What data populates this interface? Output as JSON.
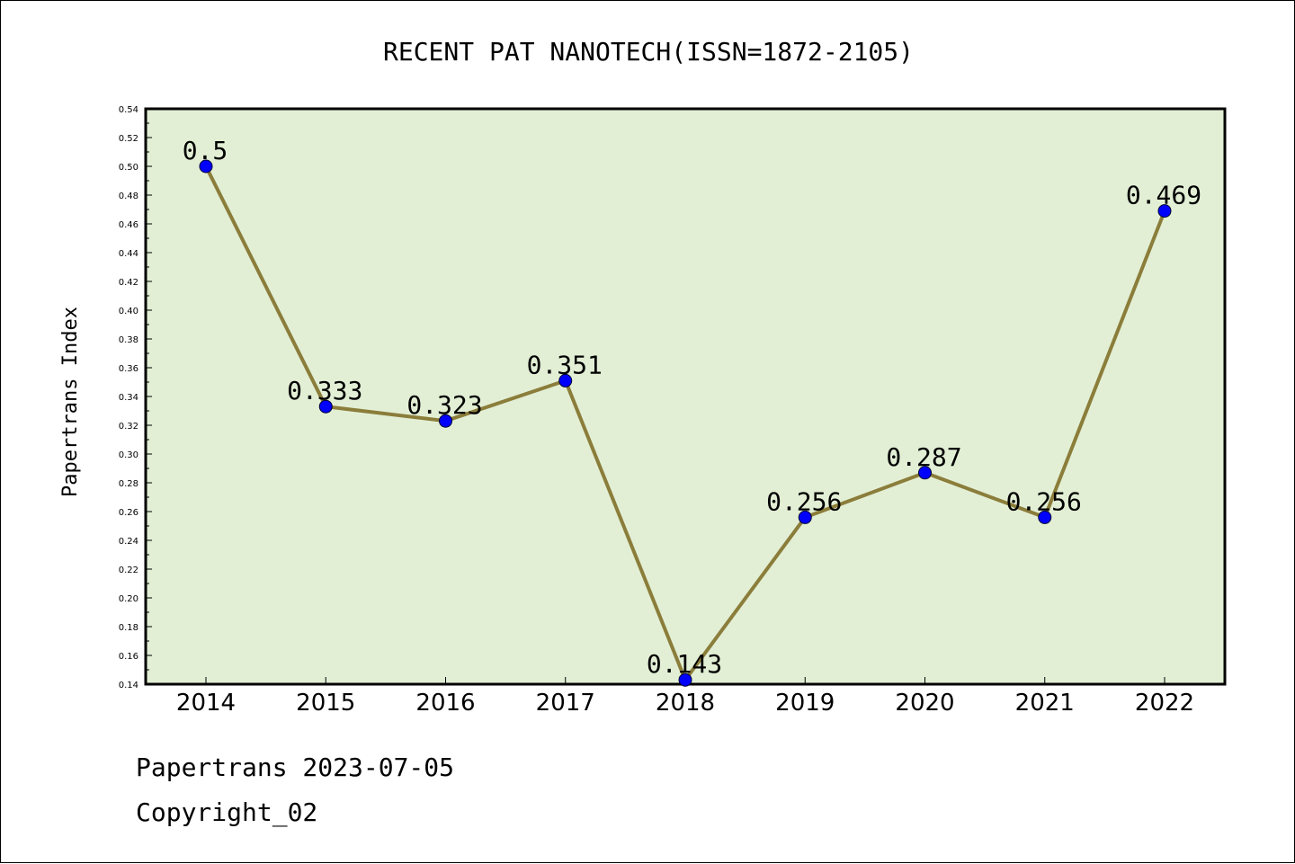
{
  "chart_data": {
    "type": "line",
    "title": "RECENT PAT NANOTECH(ISSN=1872-2105)",
    "xlabel": "",
    "ylabel": "Papertrans Index",
    "categories": [
      "2014",
      "2015",
      "2016",
      "2017",
      "2018",
      "2019",
      "2020",
      "2021",
      "2022"
    ],
    "values": [
      0.5,
      0.333,
      0.323,
      0.351,
      0.143,
      0.256,
      0.287,
      0.256,
      0.469
    ],
    "data_labels": [
      "0.5",
      "0.333",
      "0.323",
      "0.351",
      "0.143",
      "0.256",
      "0.287",
      "0.256",
      "0.469"
    ],
    "ylim": [
      0.14,
      0.54
    ],
    "yticks": [
      "0.14",
      "0.16",
      "0.18",
      "0.20",
      "0.22",
      "0.24",
      "0.26",
      "0.28",
      "0.30",
      "0.32",
      "0.34",
      "0.36",
      "0.38",
      "0.40",
      "0.42",
      "0.44",
      "0.46",
      "0.48",
      "0.50",
      "0.52",
      "0.54"
    ],
    "grid": false,
    "colors": {
      "plot_background": "#e2efd5",
      "line": "#8b7d3a",
      "marker": "#0000ff",
      "axis": "#000000"
    }
  },
  "footer": {
    "line1": "Papertrans 2023-07-05",
    "line2": "Copyright_02"
  }
}
